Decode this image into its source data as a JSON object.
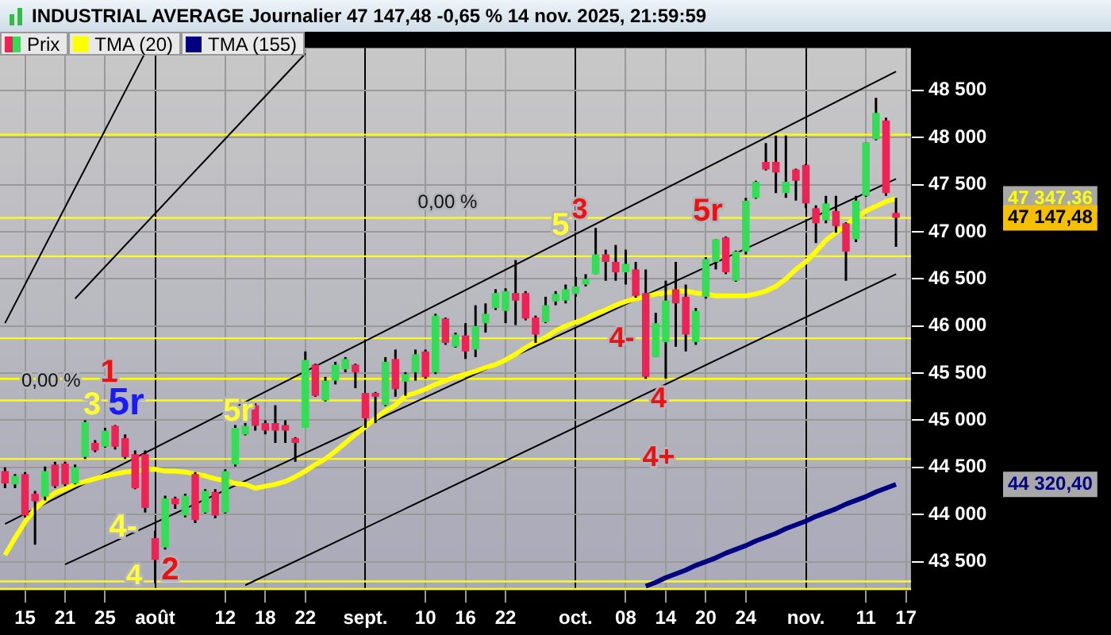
{
  "chart_data": {
    "type": "candlestick",
    "title": "INDUSTRIAL AVERAGE Journalier 47 147,48 -0,65 % 14 nov. 2025, 21:59:59",
    "categories": [
      null,
      null,
      "15",
      null,
      null,
      null,
      "21",
      null,
      null,
      null,
      "25",
      null,
      null,
      null,
      null,
      "août",
      null,
      null,
      null,
      null,
      null,
      null,
      "12",
      null,
      null,
      null,
      "18",
      null,
      null,
      null,
      "22",
      null,
      null,
      null,
      null,
      null,
      "sept.",
      null,
      null,
      null,
      null,
      null,
      "10",
      null,
      null,
      null,
      "16",
      null,
      null,
      null,
      "22",
      null,
      null,
      null,
      null,
      null,
      null,
      "oct.",
      null,
      null,
      null,
      null,
      "08",
      null,
      null,
      null,
      "14",
      null,
      null,
      null,
      "20",
      null,
      null,
      null,
      "24",
      null,
      null,
      null,
      null,
      null,
      "nov.",
      null,
      null,
      null,
      null,
      null,
      "11",
      null,
      null,
      null,
      "17"
    ],
    "series": [
      {
        "name": "Prix",
        "type": "candlestick",
        "ohlc": [
          [
            44460,
            44500,
            44280,
            44330
          ],
          [
            44320,
            44430,
            44280,
            44410
          ],
          [
            44430,
            44450,
            43970,
            43990
          ],
          [
            44220,
            44250,
            43680,
            44140
          ],
          [
            44190,
            44510,
            44150,
            44460
          ],
          [
            44530,
            44560,
            44280,
            44300
          ],
          [
            44540,
            44560,
            44300,
            44320
          ],
          [
            44330,
            44530,
            44320,
            44500
          ],
          [
            44610,
            45000,
            44590,
            44980
          ],
          [
            44760,
            44790,
            44660,
            44680
          ],
          [
            44720,
            44920,
            44710,
            44890
          ],
          [
            44940,
            44950,
            44690,
            44720
          ],
          [
            44810,
            44850,
            44590,
            44610
          ],
          [
            44640,
            44680,
            44270,
            44280
          ],
          [
            44640,
            44680,
            44020,
            44070
          ],
          [
            43750,
            43830,
            43270,
            43520
          ],
          [
            43650,
            44200,
            43630,
            44170
          ],
          [
            44170,
            44190,
            44060,
            44110
          ],
          [
            43990,
            44220,
            43970,
            44200
          ],
          [
            44430,
            44450,
            43910,
            43940
          ],
          [
            44020,
            44270,
            44010,
            44250
          ],
          [
            44240,
            44270,
            43960,
            43990
          ],
          [
            44020,
            44480,
            44010,
            44460
          ],
          [
            44530,
            44950,
            44510,
            44920
          ],
          [
            44850,
            44970,
            44840,
            44940
          ],
          [
            45160,
            45180,
            44890,
            44940
          ],
          [
            44970,
            45000,
            44850,
            44890
          ],
          [
            44970,
            45160,
            44760,
            44890
          ],
          [
            44950,
            45000,
            44760,
            44890
          ],
          [
            44810,
            44820,
            44560,
            44760
          ],
          [
            44920,
            45730,
            44920,
            45640
          ],
          [
            45590,
            45600,
            45250,
            45260
          ],
          [
            45210,
            45460,
            45200,
            45420
          ],
          [
            45420,
            45620,
            45380,
            45590
          ],
          [
            45540,
            45670,
            45510,
            45650
          ],
          [
            45590,
            45600,
            45340,
            45510
          ],
          [
            45290,
            45290,
            44920,
            45020
          ],
          [
            45290,
            45300,
            44970,
            45250
          ],
          [
            45160,
            45670,
            45150,
            45620
          ],
          [
            45650,
            45750,
            45250,
            45330
          ],
          [
            45410,
            45510,
            45260,
            45490
          ],
          [
            45510,
            45750,
            45420,
            45700
          ],
          [
            45730,
            45750,
            45440,
            45460
          ],
          [
            45510,
            46130,
            45490,
            46110
          ],
          [
            46080,
            46090,
            45800,
            45820
          ],
          [
            45780,
            45930,
            45770,
            45910
          ],
          [
            45900,
            46030,
            45650,
            45730
          ],
          [
            45750,
            46220,
            45670,
            46000
          ],
          [
            46030,
            46240,
            45930,
            46130
          ],
          [
            46190,
            46390,
            46170,
            46350
          ],
          [
            46160,
            46400,
            46030,
            46370
          ],
          [
            46350,
            46700,
            46010,
            46270
          ],
          [
            46350,
            46370,
            46060,
            46080
          ],
          [
            46090,
            46110,
            45820,
            45910
          ],
          [
            46040,
            46310,
            46030,
            46220
          ],
          [
            46260,
            46370,
            46220,
            46340
          ],
          [
            46270,
            46440,
            46240,
            46390
          ],
          [
            46340,
            46520,
            46310,
            46420
          ],
          [
            46440,
            46550,
            46420,
            46500
          ],
          [
            46550,
            47040,
            46550,
            46760
          ],
          [
            46760,
            46810,
            46480,
            46680
          ],
          [
            46680,
            46860,
            46480,
            46570
          ],
          [
            46570,
            46810,
            46440,
            46660
          ],
          [
            46600,
            46680,
            46300,
            46320
          ],
          [
            46350,
            46600,
            45440,
            45460
          ],
          [
            45670,
            46140,
            45670,
            46030
          ],
          [
            45830,
            46480,
            45440,
            46270
          ],
          [
            46390,
            46680,
            45780,
            46240
          ],
          [
            46310,
            46440,
            45730,
            45910
          ],
          [
            45830,
            46190,
            45800,
            46160
          ],
          [
            46310,
            46730,
            46290,
            46710
          ],
          [
            46680,
            46920,
            46600,
            46920
          ],
          [
            46940,
            46950,
            46550,
            46570
          ],
          [
            46480,
            46800,
            46470,
            46790
          ],
          [
            46790,
            47360,
            46760,
            47330
          ],
          [
            47360,
            47540,
            47350,
            47530
          ],
          [
            47740,
            47940,
            47650,
            47660
          ],
          [
            47740,
            48020,
            47410,
            47630
          ],
          [
            47410,
            48020,
            47360,
            47530
          ],
          [
            47660,
            47670,
            47330,
            47540
          ],
          [
            47710,
            47720,
            47250,
            47300
          ],
          [
            47250,
            47280,
            46880,
            47090
          ],
          [
            47120,
            47380,
            47090,
            47300
          ],
          [
            47220,
            47380,
            46990,
            47060
          ],
          [
            47090,
            47100,
            46480,
            46790
          ],
          [
            46920,
            47380,
            46890,
            47330
          ],
          [
            47380,
            47950,
            47370,
            47950
          ],
          [
            47980,
            48420,
            47970,
            48260
          ],
          [
            48180,
            48210,
            47380,
            47410
          ],
          [
            47200,
            47360,
            46840,
            47147.48
          ],
          null
        ],
        "colors": [
          "#ee2255",
          "#33dd55",
          "#ee2255",
          "#ee2255",
          "#33dd55",
          "#ee2255",
          "#ee2255",
          "#33dd55",
          "#33dd55",
          "#ee2255",
          "#33dd55",
          "#ee2255",
          "#ee2255",
          "#ee2255",
          "#ee2255",
          "#ee2255",
          "#33dd55",
          "#ee2255",
          "#33dd55",
          "#ee2255",
          "#33dd55",
          "#ee2255",
          "#33dd55",
          "#33dd55",
          "#33dd55",
          "#ee2255",
          "#ee2255",
          "#ee2255",
          "#ee2255",
          "#ee2255",
          "#33dd55",
          "#ee2255",
          "#33dd55",
          "#33dd55",
          "#33dd55",
          "#ee2255",
          "#ee2255",
          "#ee2255",
          "#33dd55",
          "#ee2255",
          "#33dd55",
          "#33dd55",
          "#ee2255",
          "#33dd55",
          "#ee2255",
          "#33dd55",
          "#ee2255",
          "#33dd55",
          "#33dd55",
          "#33dd55",
          "#33dd55",
          "#ee2255",
          "#ee2255",
          "#ee2255",
          "#33dd55",
          "#33dd55",
          "#33dd55",
          "#33dd55",
          "#33dd55",
          "#33dd55",
          "#ee2255",
          "#ee2255",
          "#33dd55",
          "#ee2255",
          "#ee2255",
          "#33dd55",
          "#33dd55",
          "#ee2255",
          "#ee2255",
          "#33dd55",
          "#33dd55",
          "#33dd55",
          "#ee2255",
          "#33dd55",
          "#33dd55",
          "#33dd55",
          "#ee2255",
          "#ee2255",
          "#33dd55",
          "#ee2255",
          "#ee2255",
          "#ee2255",
          "#33dd55",
          "#ee2255",
          "#ee2255",
          "#33dd55",
          "#33dd55",
          "#33dd55",
          "#ee2255",
          "#ee2255",
          null
        ]
      },
      {
        "name": "TMA (20)",
        "type": "line",
        "color": "#ffff00",
        "values": [
          43570,
          43750,
          43920,
          44060,
          44150,
          44230,
          44270,
          44320,
          44350,
          44380,
          44410,
          44430,
          44450,
          44460,
          44480,
          44480,
          44460,
          44460,
          44450,
          44430,
          44410,
          44380,
          44360,
          44330,
          44320,
          44280,
          44300,
          44320,
          44350,
          44400,
          44460,
          44530,
          44590,
          44670,
          44760,
          44850,
          44930,
          45020,
          45100,
          45160,
          45260,
          45290,
          45330,
          45380,
          45420,
          45460,
          45490,
          45520,
          45560,
          45590,
          45640,
          45700,
          45770,
          45830,
          45880,
          45950,
          46000,
          46040,
          46080,
          46130,
          46170,
          46220,
          46260,
          46290,
          46310,
          46340,
          46350,
          46370,
          46370,
          46350,
          46340,
          46320,
          46320,
          46320,
          46320,
          46340,
          46370,
          46420,
          46500,
          46600,
          46680,
          46790,
          46910,
          46990,
          47070,
          47150,
          47220,
          47270,
          47320,
          47350,
          null
        ]
      },
      {
        "name": "TMA (155)",
        "type": "line",
        "color": "#000080",
        "values": [
          null,
          null,
          null,
          null,
          null,
          null,
          null,
          null,
          null,
          null,
          null,
          null,
          null,
          null,
          null,
          null,
          null,
          null,
          null,
          null,
          null,
          null,
          null,
          null,
          null,
          null,
          null,
          null,
          null,
          null,
          null,
          null,
          null,
          null,
          null,
          null,
          null,
          null,
          null,
          null,
          null,
          null,
          null,
          null,
          null,
          null,
          null,
          null,
          null,
          null,
          null,
          null,
          null,
          null,
          null,
          null,
          null,
          null,
          null,
          null,
          null,
          null,
          null,
          null,
          43240,
          43280,
          43330,
          43370,
          43410,
          43460,
          43500,
          43540,
          43590,
          43630,
          43670,
          43720,
          43760,
          43800,
          43850,
          43890,
          43930,
          43980,
          44020,
          44060,
          44110,
          44150,
          44190,
          44240,
          44280,
          44320,
          null
        ]
      },
      {
        "type": "line",
        "color": "#000000",
        "values": [
          43900,
          null,
          null,
          null,
          null,
          null,
          null,
          null,
          null,
          null,
          null,
          null,
          null,
          null,
          null,
          null,
          null,
          null,
          null,
          null,
          null,
          null,
          null,
          null,
          null,
          null,
          null,
          null,
          null,
          null,
          null,
          null,
          null,
          null,
          null,
          null,
          null,
          null,
          null,
          null,
          null,
          null,
          null,
          null,
          null,
          null,
          null,
          null,
          null,
          null,
          null,
          null,
          null,
          null,
          null,
          null,
          null,
          null,
          null,
          null,
          null,
          null,
          null,
          null,
          null,
          null,
          null,
          null,
          null,
          null,
          null,
          null,
          null,
          null,
          null,
          null,
          null,
          null,
          null,
          null,
          null,
          null,
          null,
          null,
          null,
          null,
          null,
          null,
          null,
          48700,
          null
        ]
      },
      {
        "type": "line",
        "color": "#000000",
        "values": [
          null,
          null,
          null,
          null,
          null,
          null,
          43470,
          null,
          null,
          null,
          null,
          null,
          null,
          null,
          null,
          null,
          null,
          null,
          null,
          null,
          null,
          null,
          null,
          null,
          null,
          null,
          null,
          null,
          null,
          null,
          null,
          null,
          null,
          null,
          null,
          null,
          null,
          null,
          null,
          null,
          null,
          null,
          null,
          null,
          null,
          null,
          null,
          null,
          null,
          null,
          null,
          null,
          null,
          null,
          null,
          null,
          null,
          null,
          null,
          null,
          null,
          null,
          null,
          null,
          null,
          null,
          null,
          null,
          null,
          null,
          null,
          null,
          null,
          null,
          null,
          null,
          null,
          null,
          null,
          null,
          null,
          null,
          null,
          null,
          null,
          null,
          null,
          null,
          null,
          47560,
          null
        ]
      },
      {
        "type": "line",
        "color": "#000000",
        "values": [
          null,
          null,
          null,
          null,
          null,
          null,
          null,
          null,
          null,
          null,
          null,
          null,
          null,
          null,
          null,
          null,
          null,
          null,
          null,
          null,
          null,
          null,
          null,
          null,
          43250,
          null,
          null,
          null,
          null,
          null,
          null,
          null,
          null,
          null,
          null,
          null,
          null,
          null,
          null,
          null,
          null,
          null,
          null,
          null,
          null,
          null,
          null,
          null,
          null,
          null,
          null,
          null,
          null,
          null,
          null,
          null,
          null,
          null,
          null,
          null,
          null,
          null,
          null,
          null,
          null,
          null,
          null,
          null,
          null,
          null,
          null,
          null,
          null,
          null,
          null,
          null,
          null,
          null,
          null,
          null,
          null,
          null,
          null,
          null,
          null,
          null,
          null,
          null,
          null,
          46550,
          null
        ]
      },
      {
        "type": "line",
        "color": "#000000",
        "values": [
          46030,
          null,
          null,
          null,
          null,
          null,
          null,
          null,
          null,
          null,
          null,
          null,
          null,
          null,
          48900,
          null,
          null,
          null,
          null,
          null,
          null,
          null,
          null,
          null,
          null,
          null,
          null,
          null,
          null,
          null,
          null,
          null,
          null,
          null,
          null,
          null,
          null,
          null,
          null,
          null,
          null,
          null,
          null,
          null,
          null,
          null,
          null,
          null,
          null,
          null,
          null,
          null,
          null,
          null,
          null,
          null,
          null,
          null,
          null,
          null,
          null,
          null,
          null,
          null,
          null,
          null,
          null,
          null,
          null,
          null,
          null,
          null,
          null,
          null,
          null,
          null,
          null,
          null,
          null,
          null,
          null,
          null,
          null,
          null,
          null,
          null,
          null,
          null,
          null,
          null,
          null
        ]
      },
      {
        "type": "line",
        "color": "#000000",
        "values": [
          null,
          null,
          null,
          null,
          null,
          null,
          null,
          46290,
          null,
          null,
          null,
          null,
          null,
          null,
          null,
          null,
          null,
          null,
          null,
          null,
          null,
          null,
          null,
          null,
          null,
          null,
          null,
          null,
          null,
          null,
          48890,
          null,
          null,
          null,
          null,
          null,
          null,
          null,
          null,
          null,
          null,
          null,
          null,
          null,
          null,
          null,
          null,
          null,
          null,
          null,
          null,
          null,
          null,
          null,
          null,
          null,
          null,
          null,
          null,
          null,
          null,
          null,
          null,
          null,
          null,
          null,
          null,
          null,
          null,
          null,
          null,
          null,
          null,
          null,
          null,
          null,
          null,
          null,
          null,
          null,
          null,
          null,
          null,
          null,
          null,
          null,
          null,
          null,
          null,
          null,
          null
        ]
      }
    ],
    "ylim": [
      43200,
      48950
    ],
    "yticks": [
      {
        "value": 43500,
        "label": "43 500"
      },
      {
        "value": 44000,
        "label": "44 000"
      },
      {
        "value": 44500,
        "label": "44 500"
      },
      {
        "value": 45000,
        "label": "45 000"
      },
      {
        "value": 45500,
        "label": "45 500"
      },
      {
        "value": 46000,
        "label": "46 000"
      },
      {
        "value": 46500,
        "label": "46 500"
      },
      {
        "value": 47000,
        "label": "47 000"
      },
      {
        "value": 47500,
        "label": "47 500"
      },
      {
        "value": 48000,
        "label": "48 000"
      },
      {
        "value": 48500,
        "label": "48 500"
      }
    ],
    "ref_lines": [
      {
        "axis": "y",
        "value": 48030,
        "color": "#ffff00"
      },
      {
        "axis": "y",
        "value": 47147.48,
        "color": "#ffff00"
      },
      {
        "axis": "y",
        "value": 46740,
        "color": "#ffff00"
      },
      {
        "axis": "y",
        "value": 45870,
        "color": "#ffff00"
      },
      {
        "axis": "y",
        "value": 45440,
        "color": "#ffff00"
      },
      {
        "axis": "y",
        "value": 45210,
        "color": "#ffff00"
      },
      {
        "axis": "y",
        "value": 44590,
        "color": "#ffff00"
      },
      {
        "axis": "y",
        "value": 43290,
        "color": "#ffff00"
      },
      {
        "axis": "y",
        "value": 43210,
        "color": "#ffff00"
      }
    ],
    "annotations": [
      "0,00 %",
      "3",
      "1",
      "5r",
      "4-",
      "4",
      "2",
      "5r",
      "0,00 %",
      "5",
      "3",
      "4-",
      "4",
      "4+",
      "5r",
      "47 347,36",
      "47 147,48",
      "44 320,40"
    ],
    "grid": true,
    "legend": "top left"
  }
}
